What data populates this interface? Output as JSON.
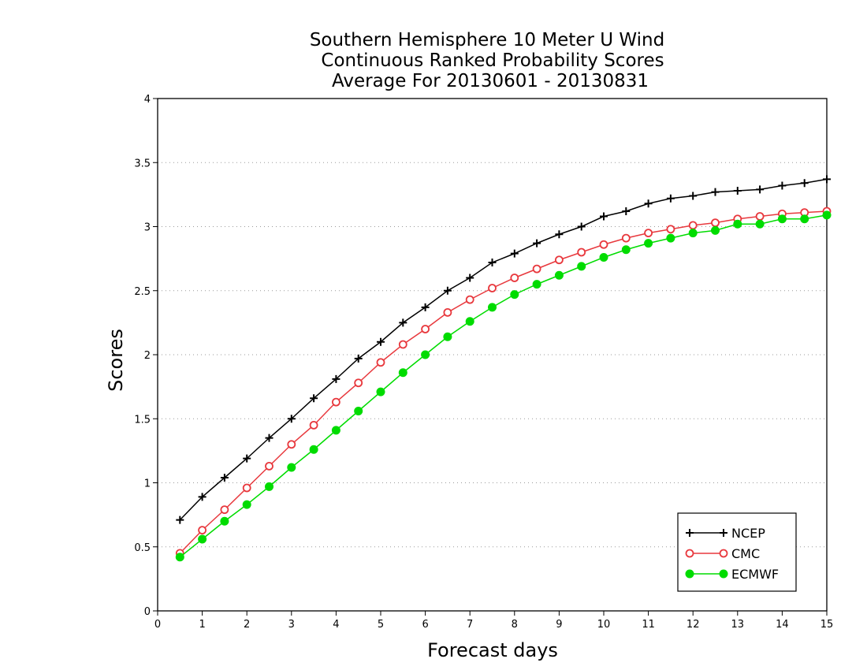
{
  "chart_data": {
    "type": "line",
    "title": [
      "Southern Hemisphere 10 Meter U Wind",
      "Continuous Ranked Probability Scores",
      "Average For 20130601 - 20130831"
    ],
    "xlabel": "Forecast days",
    "ylabel": "Scores",
    "xlim": [
      0,
      15
    ],
    "ylim": [
      0,
      4
    ],
    "x_ticks": [
      0,
      1,
      2,
      3,
      4,
      5,
      6,
      7,
      8,
      9,
      10,
      11,
      12,
      13,
      14,
      15
    ],
    "y_ticks": [
      0,
      0.5,
      1,
      1.5,
      2,
      2.5,
      3,
      3.5,
      4
    ],
    "grid": "horizontal dotted",
    "legend_position": "bottom-right",
    "x": [
      0.5,
      1,
      1.5,
      2,
      2.5,
      3,
      3.5,
      4,
      4.5,
      5,
      5.5,
      6,
      6.5,
      7,
      7.5,
      8,
      8.5,
      9,
      9.5,
      10,
      10.5,
      11,
      11.5,
      12,
      12.5,
      13,
      13.5,
      14,
      14.5,
      15
    ],
    "series": [
      {
        "name": "NCEP",
        "color": "#000000",
        "marker": "plus",
        "values": [
          0.71,
          0.89,
          1.04,
          1.19,
          1.35,
          1.5,
          1.66,
          1.81,
          1.97,
          2.1,
          2.25,
          2.37,
          2.5,
          2.6,
          2.72,
          2.79,
          2.87,
          2.94,
          3.0,
          3.08,
          3.12,
          3.18,
          3.22,
          3.24,
          3.27,
          3.28,
          3.29,
          3.32,
          3.34,
          3.37
        ]
      },
      {
        "name": "CMC",
        "color": "#e8383d",
        "marker": "open-circle",
        "values": [
          0.45,
          0.63,
          0.79,
          0.96,
          1.13,
          1.3,
          1.45,
          1.63,
          1.78,
          1.94,
          2.08,
          2.2,
          2.33,
          2.43,
          2.52,
          2.6,
          2.67,
          2.74,
          2.8,
          2.86,
          2.91,
          2.95,
          2.98,
          3.01,
          3.03,
          3.06,
          3.08,
          3.1,
          3.11,
          3.12
        ]
      },
      {
        "name": "ECMWF",
        "color": "#00dc00",
        "marker": "filled-circle",
        "values": [
          0.42,
          0.56,
          0.7,
          0.83,
          0.97,
          1.12,
          1.26,
          1.41,
          1.56,
          1.71,
          1.86,
          2.0,
          2.14,
          2.26,
          2.37,
          2.47,
          2.55,
          2.62,
          2.69,
          2.76,
          2.82,
          2.87,
          2.91,
          2.95,
          2.97,
          3.02,
          3.02,
          3.06,
          3.06,
          3.09
        ]
      }
    ]
  }
}
